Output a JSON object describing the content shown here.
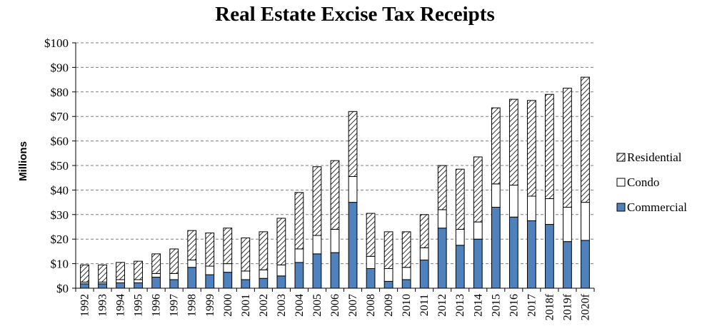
{
  "chart_data": {
    "type": "bar",
    "stacked": true,
    "title": "Real Estate Excise Tax Receipts",
    "xlabel": "",
    "ylabel": "Millions",
    "ylim": [
      0,
      100
    ],
    "yticks": [
      "$0",
      "$10",
      "$20",
      "$30",
      "$40",
      "$50",
      "$60",
      "$70",
      "$80",
      "$90",
      "$100"
    ],
    "grid": true,
    "legend_position": "right",
    "categories": [
      "1992",
      "1993",
      "1994",
      "1995",
      "1996",
      "1997",
      "1998",
      "1999",
      "2000",
      "2001",
      "2002",
      "2003",
      "2004",
      "2005",
      "2006",
      "2007",
      "2008",
      "2009",
      "2010",
      "2011",
      "2012",
      "2013",
      "2014",
      "2015",
      "2016",
      "2017",
      "2018f",
      "2019f",
      "2020f"
    ],
    "series": [
      {
        "name": "Commercial",
        "fill": "blue",
        "color": "#4f81bd",
        "values": [
          1.8,
          1.8,
          2.2,
          2.2,
          4.5,
          3.5,
          8.5,
          5.5,
          6.5,
          3.5,
          4,
          5,
          10.5,
          14,
          14.5,
          35,
          8,
          2.8,
          3.5,
          11.5,
          24.5,
          17.5,
          20,
          33,
          29,
          27.5,
          26,
          19,
          19.5
        ]
      },
      {
        "name": "Condo",
        "fill": "white",
        "color": "#ffffff",
        "values": [
          0.7,
          0.7,
          1.3,
          1.3,
          1.5,
          2.5,
          3,
          3.5,
          3.5,
          3.5,
          3.5,
          4.5,
          5.5,
          7.5,
          9.5,
          10.5,
          5,
          5.2,
          5,
          5,
          7.5,
          6.5,
          7,
          9.5,
          13,
          10,
          10.5,
          14,
          15.5
        ]
      },
      {
        "name": "Residential",
        "fill": "hatched",
        "color": "#000000",
        "values": [
          7,
          7,
          7,
          7.5,
          8,
          10,
          12,
          13.5,
          14.5,
          13.5,
          15.5,
          19,
          23,
          28,
          28,
          26.5,
          17.5,
          15,
          14.5,
          13.5,
          18,
          24.5,
          26.5,
          31,
          35,
          39,
          42.5,
          48.5,
          51
        ]
      }
    ]
  }
}
